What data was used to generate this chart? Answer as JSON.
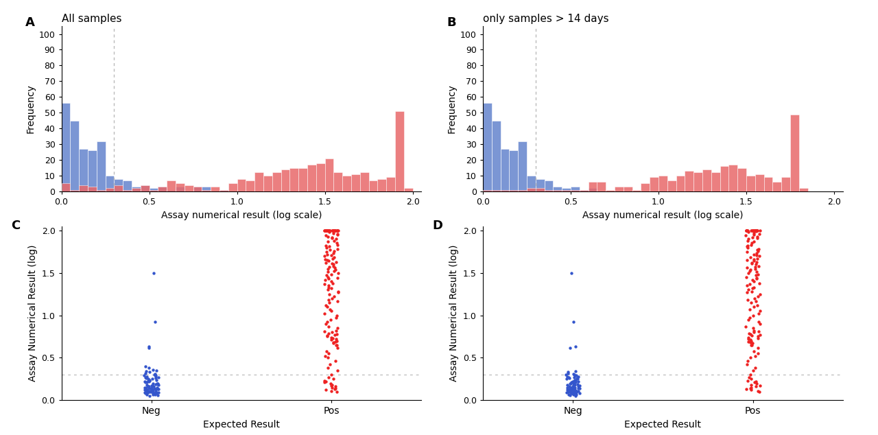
{
  "panel_A_title": "All samples",
  "panel_B_title": "only samples > 14 days",
  "hist_xlabel": "Assay numerical result (log scale)",
  "hist_ylabel": "Frequency",
  "scatter_xlabel": "Expected Result",
  "scatter_ylabel": "Assay Numerical Result (log)",
  "scatter_xticks": [
    "Neg",
    "Pos"
  ],
  "vline_x": 0.3,
  "hline_y": 0.3,
  "blue_color": "#7B96D4",
  "red_color": "#E8696A",
  "blue_dot_color": "#3355CC",
  "red_dot_color": "#EE2222",
  "vline_color": "#BBBBBB",
  "hline_color": "#BBBBBB",
  "hist_ylim": [
    0,
    105
  ],
  "hist_yticks": [
    0,
    10,
    20,
    30,
    40,
    50,
    60,
    70,
    80,
    90,
    100
  ],
  "scatter_ylim": [
    0.0,
    2.05
  ],
  "scatter_yticks": [
    0.0,
    0.5,
    1.0,
    1.5,
    2.0
  ],
  "blue_hist_A": [
    56,
    45,
    27,
    26,
    32,
    10,
    8,
    7,
    3,
    4,
    2,
    3,
    1,
    3,
    0,
    3,
    3,
    0,
    1,
    0,
    0,
    0,
    0,
    0,
    0,
    0,
    0,
    0,
    0,
    0,
    0,
    0,
    0,
    0,
    0,
    0,
    0,
    0,
    0,
    0
  ],
  "red_hist_A": [
    5,
    1,
    4,
    3,
    1,
    2,
    4,
    1,
    2,
    4,
    1,
    3,
    7,
    5,
    4,
    3,
    1,
    3,
    1,
    5,
    8,
    7,
    12,
    10,
    12,
    14,
    15,
    15,
    17,
    18,
    21,
    12,
    10,
    11,
    12,
    7,
    8,
    9,
    51,
    2
  ],
  "blue_hist_B": [
    56,
    45,
    27,
    26,
    32,
    10,
    8,
    7,
    3,
    2,
    3,
    1,
    2,
    0,
    0,
    0,
    0,
    0,
    0,
    0,
    0,
    0,
    0,
    0,
    0,
    0,
    0,
    0,
    0,
    0,
    0,
    0,
    0,
    0,
    0,
    0,
    0,
    0,
    0,
    0
  ],
  "red_hist_B": [
    1,
    1,
    1,
    1,
    1,
    2,
    2,
    1,
    1,
    1,
    1,
    1,
    6,
    6,
    1,
    3,
    3,
    1,
    5,
    9,
    10,
    7,
    10,
    13,
    12,
    14,
    12,
    16,
    17,
    15,
    10,
    11,
    9,
    6,
    9,
    49,
    2,
    0,
    0,
    0
  ],
  "bin_edges": [
    0.0,
    0.05,
    0.1,
    0.15,
    0.2,
    0.25,
    0.3,
    0.35,
    0.4,
    0.45,
    0.5,
    0.55,
    0.6,
    0.65,
    0.7,
    0.75,
    0.8,
    0.85,
    0.9,
    0.95,
    1.0,
    1.05,
    1.1,
    1.15,
    1.2,
    1.25,
    1.3,
    1.35,
    1.4,
    1.45,
    1.5,
    1.55,
    1.6,
    1.65,
    1.7,
    1.75,
    1.8,
    1.85,
    1.9,
    1.95,
    2.0
  ],
  "blue_neg_dots": [
    0.05,
    0.06,
    0.07,
    0.07,
    0.07,
    0.08,
    0.08,
    0.08,
    0.08,
    0.08,
    0.09,
    0.09,
    0.09,
    0.09,
    0.09,
    0.1,
    0.1,
    0.1,
    0.1,
    0.1,
    0.1,
    0.11,
    0.11,
    0.11,
    0.11,
    0.11,
    0.11,
    0.12,
    0.12,
    0.12,
    0.12,
    0.12,
    0.13,
    0.13,
    0.13,
    0.13,
    0.14,
    0.14,
    0.14,
    0.14,
    0.15,
    0.15,
    0.15,
    0.15,
    0.16,
    0.16,
    0.16,
    0.17,
    0.17,
    0.18,
    0.18,
    0.19,
    0.19,
    0.2,
    0.2,
    0.2,
    0.21,
    0.21,
    0.22,
    0.22,
    0.23,
    0.23,
    0.24,
    0.24,
    0.25,
    0.25,
    0.26,
    0.26,
    0.27,
    0.27,
    0.28,
    0.28,
    0.29,
    0.29,
    0.3,
    0.3,
    0.31,
    0.32,
    0.33,
    0.34,
    0.35,
    0.36,
    0.38,
    0.4,
    0.62,
    0.63,
    0.92,
    1.5
  ],
  "red_pos_dots": [
    0.1,
    0.11,
    0.12,
    0.13,
    0.14,
    0.15,
    0.16,
    0.17,
    0.18,
    0.2,
    0.21,
    0.22,
    0.23,
    0.25,
    0.27,
    0.3,
    0.35,
    0.38,
    0.42,
    0.46,
    0.5,
    0.52,
    0.55,
    0.58,
    0.62,
    0.65,
    0.68,
    0.7,
    0.72,
    0.75,
    0.78,
    0.8,
    0.82,
    0.85,
    0.87,
    0.9,
    0.92,
    0.95,
    0.97,
    1.0,
    1.02,
    1.05,
    1.07,
    1.1,
    1.12,
    1.15,
    1.17,
    1.18,
    1.2,
    1.22,
    1.25,
    1.27,
    1.28,
    1.3,
    1.32,
    1.33,
    1.35,
    1.37,
    1.38,
    1.4,
    1.42,
    1.43,
    1.44,
    1.45,
    1.47,
    1.48,
    1.5,
    1.51,
    1.52,
    1.54,
    1.55,
    1.56,
    1.57,
    1.58,
    1.6,
    1.61,
    1.62,
    1.63,
    1.64,
    1.65,
    1.66,
    1.67,
    1.68,
    1.7,
    1.71,
    1.72,
    1.73,
    1.75,
    1.76,
    1.77,
    1.78,
    1.8,
    1.81,
    1.82,
    1.83,
    1.85,
    1.87,
    1.88,
    1.9,
    1.91,
    1.92,
    1.93,
    1.94,
    1.95,
    1.96,
    1.97,
    1.98,
    1.99,
    2.0,
    2.0,
    2.0,
    2.0,
    2.0,
    2.0,
    2.0,
    2.0,
    2.0,
    2.0,
    2.0,
    2.0,
    2.0,
    2.0,
    2.0,
    2.0,
    2.0,
    2.0,
    2.0,
    2.0,
    2.0,
    2.0,
    2.0,
    2.0,
    2.0,
    2.0,
    2.0,
    2.0,
    2.0,
    2.0,
    2.0,
    2.0,
    0.65,
    0.67,
    0.69,
    0.71,
    0.73,
    0.74,
    0.76,
    0.77,
    0.79,
    0.81
  ],
  "blue_neg_dots_D": [
    0.05,
    0.06,
    0.07,
    0.07,
    0.07,
    0.08,
    0.08,
    0.08,
    0.08,
    0.08,
    0.09,
    0.09,
    0.09,
    0.09,
    0.09,
    0.1,
    0.1,
    0.1,
    0.1,
    0.1,
    0.1,
    0.11,
    0.11,
    0.11,
    0.11,
    0.11,
    0.11,
    0.12,
    0.12,
    0.12,
    0.12,
    0.12,
    0.13,
    0.13,
    0.13,
    0.13,
    0.14,
    0.14,
    0.14,
    0.14,
    0.15,
    0.15,
    0.15,
    0.15,
    0.16,
    0.16,
    0.16,
    0.17,
    0.17,
    0.18,
    0.18,
    0.19,
    0.19,
    0.2,
    0.2,
    0.2,
    0.21,
    0.21,
    0.22,
    0.22,
    0.23,
    0.23,
    0.24,
    0.24,
    0.25,
    0.25,
    0.26,
    0.26,
    0.27,
    0.27,
    0.28,
    0.28,
    0.29,
    0.29,
    0.3,
    0.3,
    0.31,
    0.32,
    0.33,
    0.34,
    0.62,
    0.63,
    0.92,
    1.5
  ],
  "red_pos_dots_D": [
    0.1,
    0.11,
    0.12,
    0.13,
    0.14,
    0.15,
    0.16,
    0.17,
    0.18,
    0.2,
    0.21,
    0.22,
    0.23,
    0.25,
    0.27,
    0.3,
    0.35,
    0.38,
    0.42,
    0.46,
    0.5,
    0.52,
    0.55,
    0.58,
    0.62,
    0.65,
    0.68,
    0.7,
    0.72,
    0.75,
    0.78,
    0.8,
    0.82,
    0.85,
    0.87,
    0.9,
    0.92,
    0.95,
    0.97,
    1.0,
    1.02,
    1.05,
    1.07,
    1.1,
    1.12,
    1.15,
    1.17,
    1.18,
    1.2,
    1.22,
    1.25,
    1.27,
    1.28,
    1.3,
    1.32,
    1.33,
    1.35,
    1.37,
    1.38,
    1.4,
    1.42,
    1.43,
    1.44,
    1.45,
    1.47,
    1.48,
    1.5,
    1.51,
    1.52,
    1.54,
    1.55,
    1.56,
    1.57,
    1.58,
    1.6,
    1.61,
    1.62,
    1.63,
    1.64,
    1.65,
    1.66,
    1.67,
    1.68,
    1.7,
    1.71,
    1.72,
    1.73,
    1.75,
    1.76,
    1.77,
    1.78,
    1.8,
    1.81,
    1.82,
    1.83,
    1.85,
    1.87,
    1.88,
    1.9,
    1.91,
    1.92,
    1.93,
    1.94,
    1.95,
    1.96,
    1.97,
    1.98,
    1.99,
    2.0,
    2.0,
    2.0,
    2.0,
    2.0,
    2.0,
    2.0,
    2.0,
    2.0,
    2.0,
    2.0,
    2.0,
    2.0,
    2.0,
    2.0,
    2.0,
    2.0,
    2.0,
    2.0,
    2.0,
    2.0,
    2.0,
    0.65,
    0.67,
    0.69,
    0.71,
    0.73,
    0.74,
    0.76,
    0.77,
    0.79,
    0.81
  ]
}
